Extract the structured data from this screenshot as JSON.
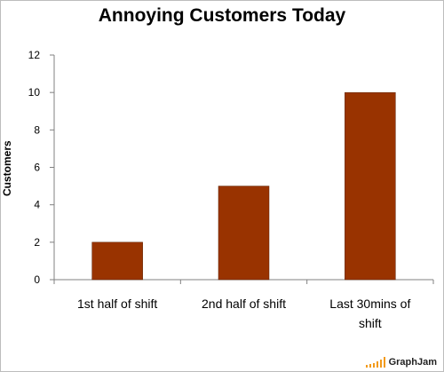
{
  "chart_data": {
    "type": "bar",
    "title": "Annoying Customers Today",
    "xlabel": "",
    "ylabel": "Customers",
    "categories": [
      "1st half of shift",
      "2nd half of shift",
      "Last 30mins of shift"
    ],
    "values": [
      2,
      5,
      10
    ],
    "ylim": [
      0,
      12
    ],
    "yticks": [
      0,
      2,
      4,
      6,
      8,
      10,
      12
    ],
    "grid": false,
    "bar_color": "#993300"
  },
  "watermark": {
    "text": "GraphJam",
    "icon": "orange-bars-icon",
    "color": "#f29a1a"
  }
}
